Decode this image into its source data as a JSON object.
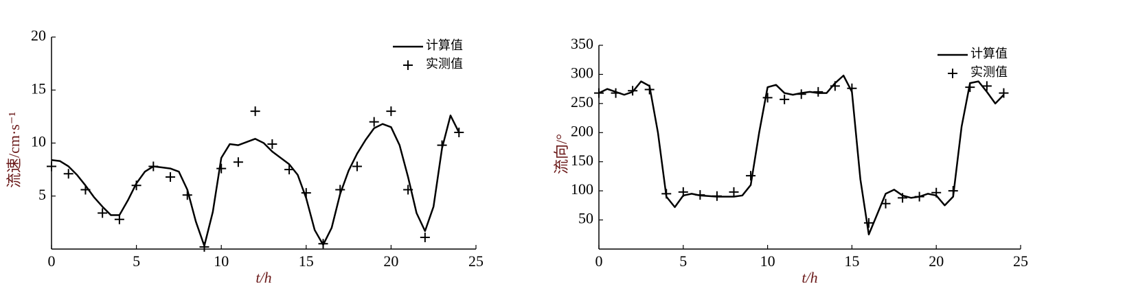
{
  "chart_data": [
    {
      "type": "line",
      "xlabel": "t/h",
      "ylabel": "流速/cm·s⁻¹",
      "xlim": [
        0,
        25
      ],
      "xticks": [
        0,
        5,
        10,
        15,
        20,
        25
      ],
      "ylim": [
        0,
        20
      ],
      "yticks": [
        5,
        10,
        15,
        20
      ],
      "legend": "upper right",
      "series": [
        {
          "name": "计算值",
          "color": "#000000",
          "style": "line",
          "x": [
            0,
            0.5,
            1,
            1.5,
            2,
            2.5,
            3,
            3.5,
            4,
            4.5,
            5,
            5.5,
            6,
            6.5,
            7,
            7.5,
            8,
            8.5,
            9,
            9.5,
            10,
            10.5,
            11,
            11.5,
            12,
            12.5,
            13,
            13.5,
            14,
            14.5,
            15,
            15.5,
            16,
            16.5,
            17,
            17.5,
            18,
            18.5,
            19,
            19.5,
            20,
            20.5,
            21,
            21.5,
            22,
            22.5,
            23,
            23.5,
            24
          ],
          "values": [
            8.4,
            8.3,
            7.8,
            7.0,
            6.0,
            4.9,
            4.0,
            3.2,
            3.2,
            4.6,
            6.2,
            7.3,
            7.8,
            7.7,
            7.6,
            7.3,
            5.6,
            2.6,
            0.3,
            3.5,
            8.6,
            9.9,
            9.8,
            10.1,
            10.4,
            10.0,
            9.2,
            8.6,
            8.0,
            7.0,
            4.8,
            1.8,
            0.4,
            2.0,
            5.2,
            7.4,
            9.0,
            10.3,
            11.4,
            11.8,
            11.5,
            9.8,
            6.8,
            3.4,
            1.7,
            4.0,
            9.5,
            12.6,
            11.0
          ]
        },
        {
          "name": "实测值",
          "color": "#000000",
          "style": "marker",
          "x": [
            0,
            1,
            2,
            3,
            4,
            5,
            6,
            7,
            8,
            9,
            10,
            11,
            12,
            13,
            14,
            15,
            16,
            17,
            18,
            19,
            20,
            21,
            22,
            23,
            24
          ],
          "values": [
            7.8,
            7.1,
            5.6,
            3.4,
            2.8,
            6.0,
            7.8,
            6.8,
            5.1,
            0.2,
            7.6,
            8.2,
            13.0,
            9.9,
            7.5,
            5.3,
            0.5,
            5.6,
            7.8,
            12.0,
            13.0,
            5.6,
            1.1,
            9.8,
            11.0
          ]
        }
      ]
    },
    {
      "type": "line",
      "xlabel": "t/h",
      "ylabel": "流向/°",
      "xlim": [
        0,
        25
      ],
      "xticks": [
        0,
        5,
        10,
        15,
        20,
        25
      ],
      "ylim": [
        0,
        350
      ],
      "yticks": [
        50,
        100,
        150,
        200,
        250,
        300,
        350
      ],
      "legend": "upper right",
      "series": [
        {
          "name": "计算值",
          "color": "#000000",
          "style": "line",
          "x": [
            0,
            0.5,
            1,
            1.5,
            2,
            2.5,
            3,
            3.5,
            4,
            4.5,
            5,
            5.5,
            6,
            6.5,
            7,
            7.5,
            8,
            8.5,
            9,
            9.5,
            10,
            10.5,
            11,
            11.5,
            12,
            12.5,
            13,
            13.5,
            14,
            14.5,
            15,
            15.5,
            16,
            16.5,
            17,
            17.5,
            18,
            18.5,
            19,
            19.5,
            20,
            20.5,
            21,
            21.5,
            22,
            22.5,
            23,
            23.5,
            24
          ],
          "values": [
            268,
            275,
            270,
            265,
            270,
            288,
            280,
            200,
            90,
            72,
            92,
            95,
            92,
            91,
            90,
            90,
            90,
            92,
            110,
            200,
            278,
            282,
            268,
            265,
            268,
            270,
            268,
            268,
            285,
            298,
            270,
            120,
            25,
            60,
            95,
            102,
            92,
            88,
            90,
            95,
            92,
            75,
            90,
            210,
            285,
            288,
            270,
            250,
            265
          ]
        },
        {
          "name": "实测值",
          "color": "#000000",
          "style": "marker",
          "x": [
            0,
            1,
            2,
            3,
            4,
            5,
            6,
            7,
            8,
            9,
            10,
            11,
            12,
            13,
            14,
            15,
            16,
            17,
            18,
            19,
            20,
            21,
            22,
            23,
            24
          ],
          "values": [
            268,
            268,
            272,
            274,
            95,
            98,
            93,
            91,
            98,
            126,
            260,
            257,
            266,
            270,
            280,
            276,
            45,
            78,
            88,
            90,
            97,
            100,
            278,
            280,
            268
          ]
        }
      ]
    }
  ]
}
